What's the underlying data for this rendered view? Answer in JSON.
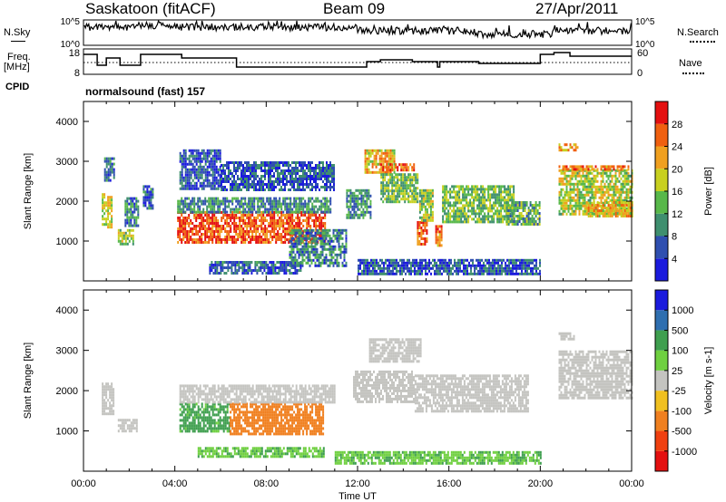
{
  "header": {
    "station": "Saskatoon (fitACF)",
    "beam": "Beam 09",
    "date": "27/Apr/2011"
  },
  "top_panels": {
    "noise": {
      "left_label": "N.Sky",
      "right_label": "N.Search",
      "yticks_left": [
        "10^5",
        "10^0"
      ],
      "yticks_right": [
        "10^5",
        "10^0"
      ]
    },
    "freq": {
      "left_label_1": "Freq.",
      "left_label_2": "[MHz]",
      "right_label": "Nave",
      "yticks_left": [
        "18",
        "8"
      ],
      "yticks_right": [
        "60",
        "0"
      ]
    },
    "cpid": {
      "label": "CPID",
      "text": "normalsound (fast) 157"
    }
  },
  "chart_data": [
    {
      "type": "heatmap",
      "panel": "power",
      "ylabel": "Slant Range [km]",
      "ylim": [
        0,
        4500
      ],
      "yticks": [
        "1000",
        "2000",
        "3000",
        "4000"
      ],
      "xlim_hours": [
        0,
        24
      ],
      "colorbar": {
        "label": "Power [dB]",
        "ticks": [
          "4",
          "8",
          "12",
          "16",
          "20",
          "24",
          "28"
        ],
        "colors": [
          "#1b1bdd",
          "#2f4fb0",
          "#3f8f6f",
          "#58b84a",
          "#c8d020",
          "#f0a020",
          "#f06010",
          "#e41010"
        ]
      },
      "regions": [
        {
          "t0": 0.8,
          "t1": 1.2,
          "r0": 1350,
          "r1": 2200,
          "v": 18
        },
        {
          "t0": 0.9,
          "t1": 1.3,
          "r0": 2500,
          "r1": 3100,
          "v": 8
        },
        {
          "t0": 1.5,
          "t1": 2.2,
          "r0": 950,
          "r1": 1300,
          "v": 15
        },
        {
          "t0": 1.8,
          "t1": 2.4,
          "r0": 1400,
          "r1": 2100,
          "v": 9
        },
        {
          "t0": 2.6,
          "t1": 3.0,
          "r0": 1800,
          "r1": 2400,
          "v": 7
        },
        {
          "t0": 4.1,
          "t1": 10.6,
          "r0": 950,
          "r1": 1750,
          "v": 27
        },
        {
          "t0": 4.1,
          "t1": 10.8,
          "r0": 1750,
          "r1": 2100,
          "v": 10
        },
        {
          "t0": 4.2,
          "t1": 6.0,
          "r0": 2300,
          "r1": 3300,
          "v": 6
        },
        {
          "t0": 6.0,
          "t1": 11.0,
          "r0": 2300,
          "r1": 3000,
          "v": 6
        },
        {
          "t0": 5.5,
          "t1": 9.5,
          "r0": 200,
          "r1": 500,
          "v": 7
        },
        {
          "t0": 9.0,
          "t1": 11.5,
          "r0": 400,
          "r1": 1300,
          "v": 9
        },
        {
          "t0": 11.5,
          "t1": 12.6,
          "r0": 1600,
          "r1": 2300,
          "v": 10
        },
        {
          "t0": 12.3,
          "t1": 13.6,
          "r0": 2700,
          "r1": 3300,
          "v": 20
        },
        {
          "t0": 13.0,
          "t1": 14.5,
          "r0": 2800,
          "r1": 2950,
          "v": 26
        },
        {
          "t0": 13.0,
          "t1": 14.6,
          "r0": 2000,
          "r1": 2700,
          "v": 14
        },
        {
          "t0": 14.6,
          "t1": 15.0,
          "r0": 900,
          "r1": 1500,
          "v": 26
        },
        {
          "t0": 14.7,
          "t1": 15.3,
          "r0": 1500,
          "r1": 2300,
          "v": 15
        },
        {
          "t0": 15.4,
          "t1": 15.7,
          "r0": 900,
          "r1": 1400,
          "v": 24
        },
        {
          "t0": 15.7,
          "t1": 18.8,
          "r0": 1500,
          "r1": 2400,
          "v": 14
        },
        {
          "t0": 18.5,
          "t1": 20.0,
          "r0": 1400,
          "r1": 2000,
          "v": 12
        },
        {
          "t0": 12.0,
          "t1": 20.0,
          "r0": 200,
          "r1": 550,
          "v": 6
        },
        {
          "t0": 20.8,
          "t1": 24.0,
          "r0": 1700,
          "r1": 2800,
          "v": 17
        },
        {
          "t0": 20.8,
          "t1": 24.0,
          "r0": 2800,
          "r1": 2900,
          "v": 25
        },
        {
          "t0": 20.8,
          "t1": 21.6,
          "r0": 3250,
          "r1": 3450,
          "v": 22
        },
        {
          "t0": 22.0,
          "t1": 24.0,
          "r0": 1600,
          "r1": 2000,
          "v": 21
        }
      ]
    },
    {
      "type": "heatmap",
      "panel": "velocity",
      "ylabel": "Slant Range [km]",
      "ylim": [
        0,
        4500
      ],
      "yticks": [
        "1000",
        "2000",
        "3000",
        "4000"
      ],
      "xlim_hours": [
        0,
        24
      ],
      "xticks": [
        "00:00",
        "04:00",
        "08:00",
        "12:00",
        "16:00",
        "20:00",
        "00:00"
      ],
      "xlabel": "Time UT",
      "colorbar": {
        "label": "Velocity [m s-1]",
        "ticks": [
          "1000",
          "500",
          "100",
          "25",
          "-25",
          "-100",
          "-500",
          "-1000"
        ],
        "colors": [
          "#1b1bdd",
          "#2f6fb0",
          "#3f9f4f",
          "#6fd040",
          "#c4c4c0",
          "#f0c020",
          "#f08020",
          "#f04010",
          "#e41010"
        ]
      },
      "regions": [
        {
          "t0": 0.8,
          "t1": 1.3,
          "r0": 1400,
          "r1": 2200,
          "v": 0
        },
        {
          "t0": 1.5,
          "t1": 2.3,
          "r0": 1000,
          "r1": 1300,
          "v": 0
        },
        {
          "t0": 4.2,
          "t1": 6.4,
          "r0": 1000,
          "r1": 1700,
          "v": 200
        },
        {
          "t0": 6.4,
          "t1": 10.5,
          "r0": 950,
          "r1": 1700,
          "v": -250
        },
        {
          "t0": 4.2,
          "t1": 11.0,
          "r0": 1700,
          "r1": 2150,
          "v": 0
        },
        {
          "t0": 5.0,
          "t1": 10.5,
          "r0": 350,
          "r1": 600,
          "v": 80
        },
        {
          "t0": 11.8,
          "t1": 14.5,
          "r0": 1700,
          "r1": 2500,
          "v": 0
        },
        {
          "t0": 12.5,
          "t1": 14.8,
          "r0": 2700,
          "r1": 3300,
          "v": 0
        },
        {
          "t0": 14.5,
          "t1": 19.5,
          "r0": 1500,
          "r1": 2400,
          "v": 0
        },
        {
          "t0": 11.0,
          "t1": 20.0,
          "r0": 200,
          "r1": 500,
          "v": 80
        },
        {
          "t0": 20.8,
          "t1": 24.0,
          "r0": 1800,
          "r1": 3000,
          "v": 0
        },
        {
          "t0": 20.8,
          "t1": 21.5,
          "r0": 3250,
          "r1": 3450,
          "v": 0
        }
      ]
    }
  ]
}
